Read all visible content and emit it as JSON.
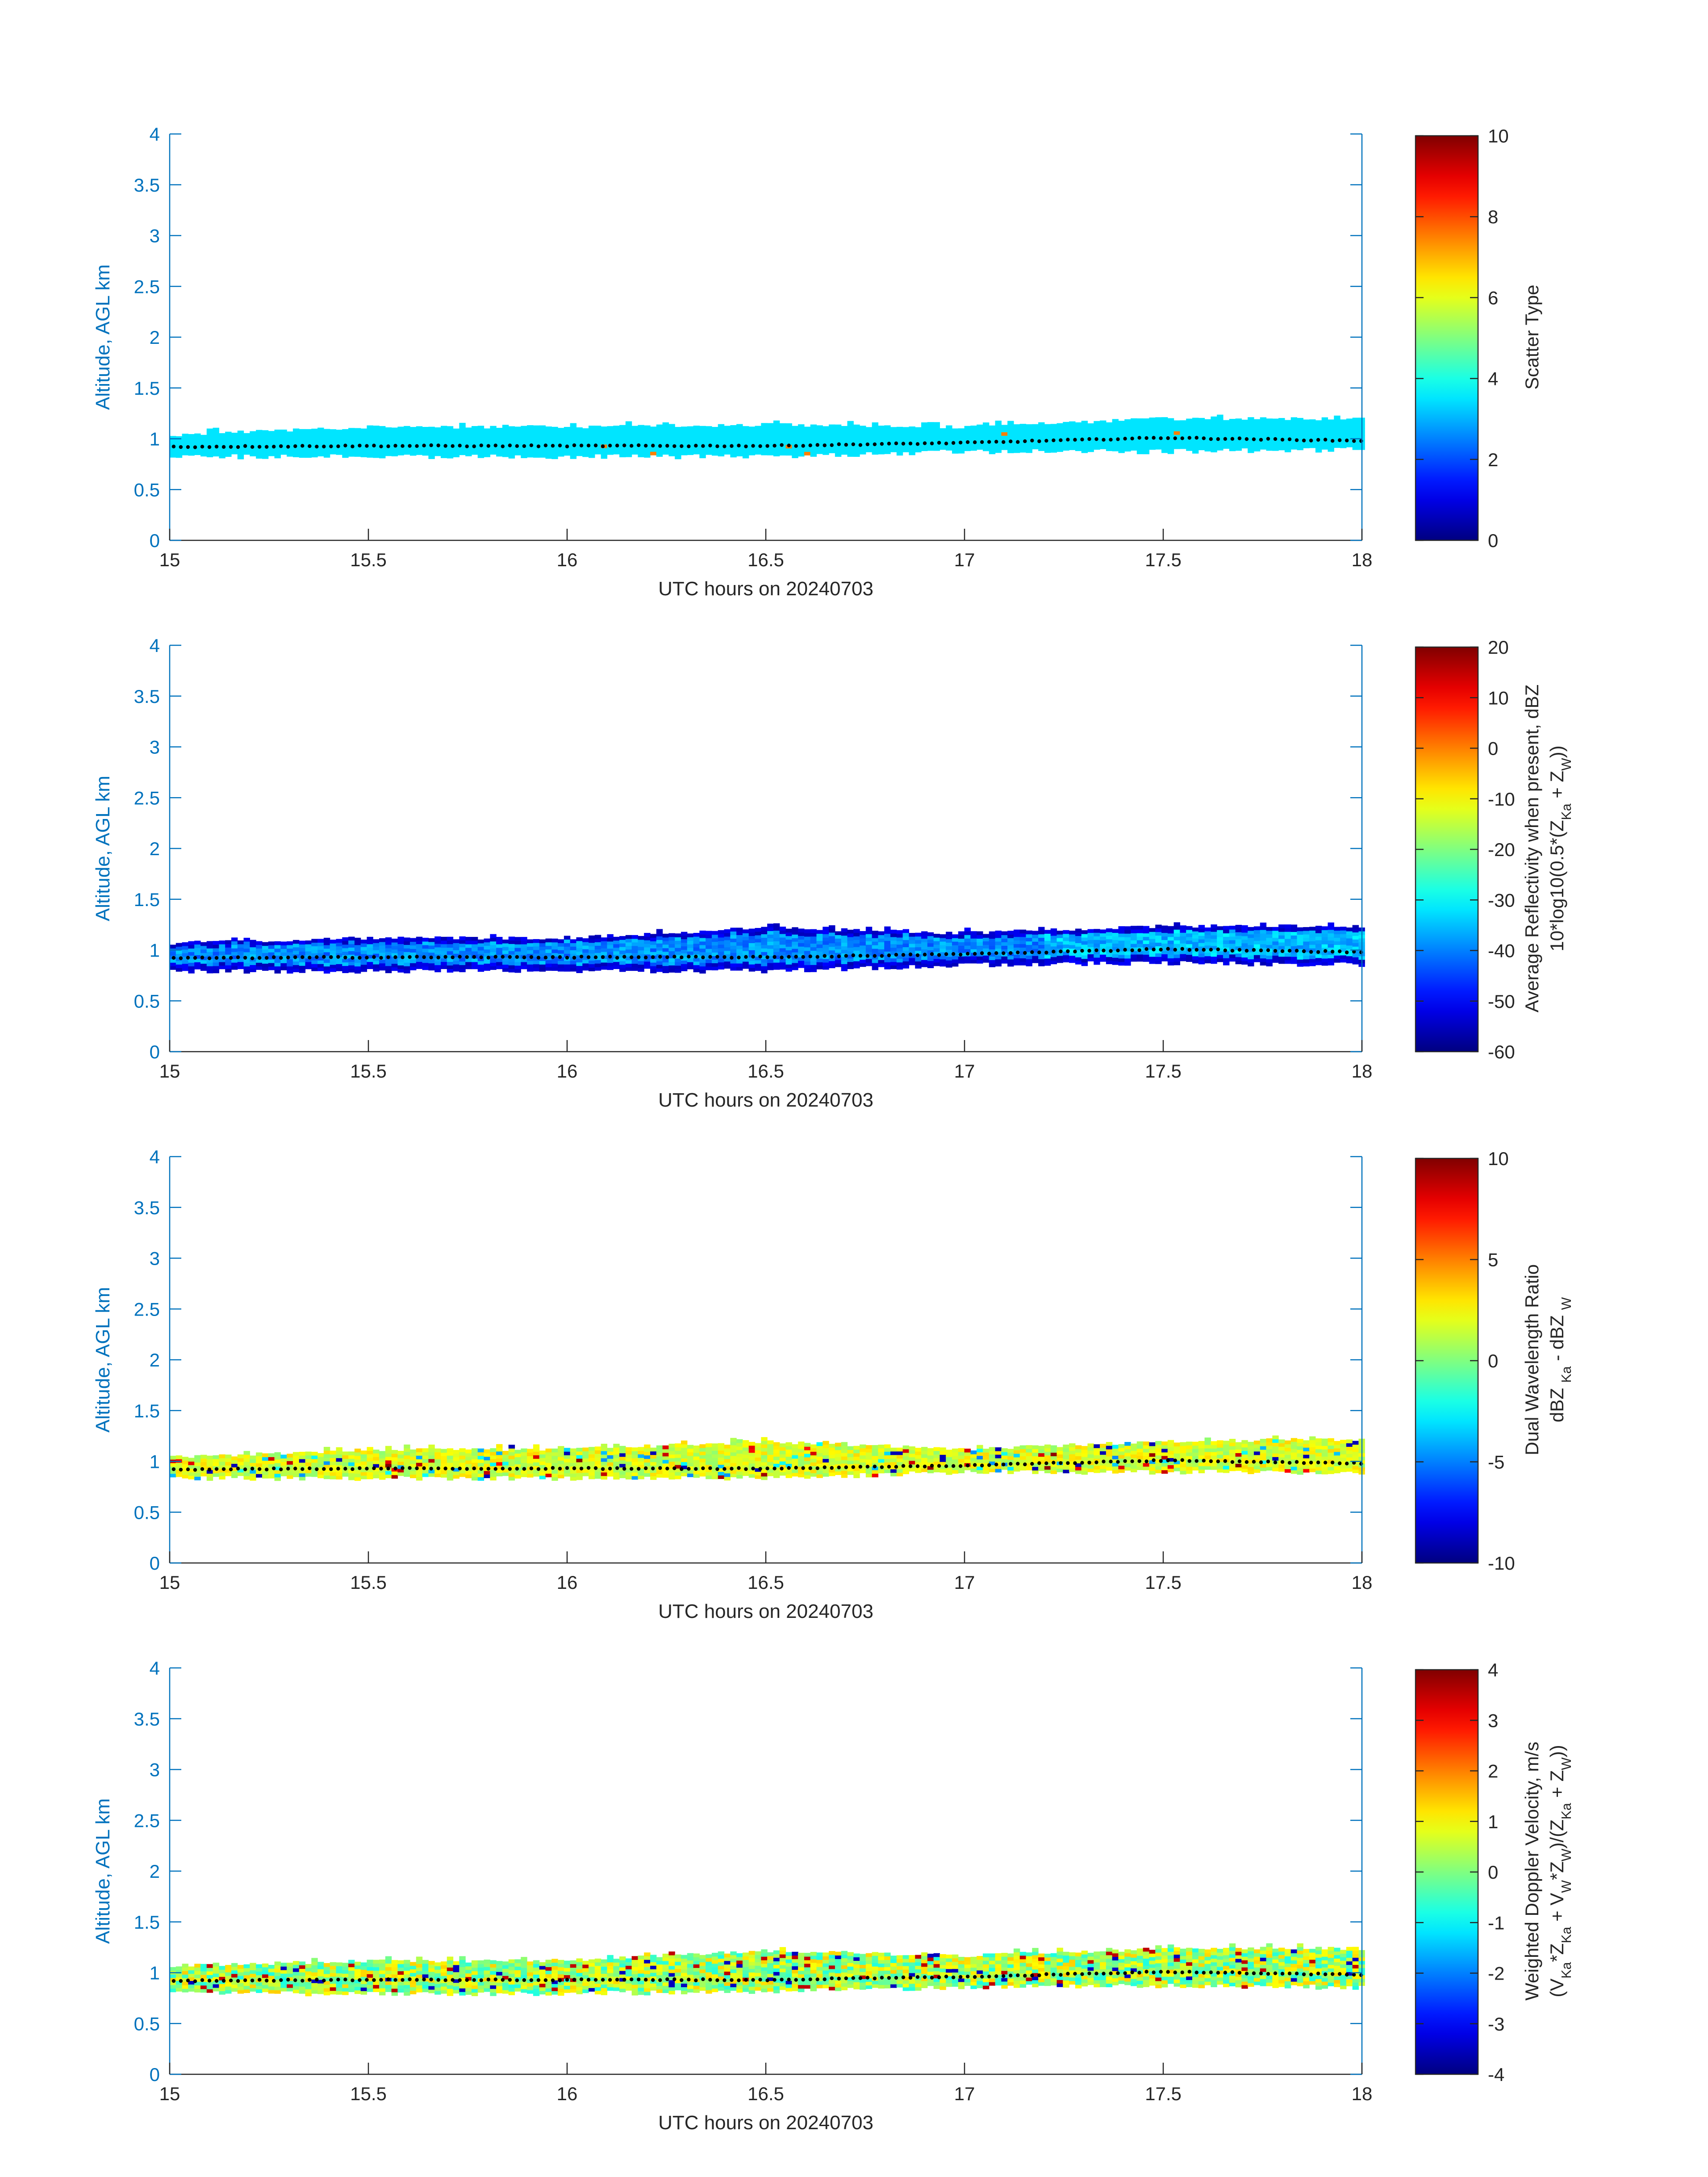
{
  "figure": {
    "title": "",
    "date_label": "UTC hours on 20240703"
  },
  "colors": {
    "axis_blue": "#0072BD",
    "text_dark": "#262626",
    "colorbar_scale": "jet"
  },
  "chart_data": [
    {
      "type": "heatmap",
      "title": "",
      "xlabel": "UTC hours on 20240703",
      "ylabel": "Altitude, AGL km",
      "xlim": [
        15,
        18
      ],
      "ylim": [
        0,
        4
      ],
      "xticks": [
        "15",
        "15.5",
        "16",
        "16.5",
        "17",
        "17.5",
        "18"
      ],
      "yticks": [
        "0",
        "0.5",
        "1",
        "1.5",
        "2",
        "2.5",
        "3",
        "3.5",
        "4"
      ],
      "colorbar": {
        "label_lines": [
          "Scatter Type"
        ],
        "clim": [
          0,
          10
        ],
        "ticks": [
          "0",
          "2",
          "4",
          "6",
          "8",
          "10"
        ]
      },
      "layer": {
        "x": [
          15.0,
          15.5,
          16.0,
          16.5,
          17.0,
          17.5,
          18.0
        ],
        "bottom_km": [
          0.85,
          0.85,
          0.85,
          0.85,
          0.9,
          0.9,
          0.92
        ],
        "top_km": [
          1.02,
          1.1,
          1.1,
          1.12,
          1.1,
          1.18,
          1.18
        ],
        "typical_value": 3.5
      },
      "line": {
        "x": [
          15.0,
          15.5,
          16.0,
          16.5,
          17.0,
          17.5,
          18.0
        ],
        "y": [
          0.92,
          0.93,
          0.93,
          0.93,
          0.96,
          1.01,
          0.98
        ]
      }
    },
    {
      "type": "heatmap",
      "title": "",
      "xlabel": "UTC hours on 20240703",
      "ylabel": "Altitude, AGL km",
      "xlim": [
        15,
        18
      ],
      "ylim": [
        0,
        4
      ],
      "xticks": [
        "15",
        "15.5",
        "16",
        "16.5",
        "17",
        "17.5",
        "18"
      ],
      "yticks": [
        "0",
        "0.5",
        "1",
        "1.5",
        "2",
        "2.5",
        "3",
        "3.5",
        "4"
      ],
      "colorbar": {
        "label_lines": [
          "Average Reflectivity when present, dBZ",
          "10*log10(0.5*(Z<sub>Ka</sub> + Z<sub>W</sub>))"
        ],
        "clim": [
          -60,
          20
        ],
        "ticks": [
          "-60",
          "-50",
          "-40",
          "-30",
          "-20",
          "-10",
          "0",
          "10",
          "20"
        ]
      },
      "layer": {
        "x": [
          15.0,
          15.5,
          16.0,
          16.5,
          17.0,
          17.5,
          18.0
        ],
        "bottom_km": [
          0.82,
          0.82,
          0.82,
          0.82,
          0.88,
          0.9,
          0.88
        ],
        "top_km": [
          1.05,
          1.1,
          1.1,
          1.2,
          1.15,
          1.22,
          1.22
        ],
        "typical_value": -42
      },
      "line": {
        "x": [
          15.0,
          15.5,
          16.0,
          16.5,
          17.0,
          17.5,
          18.0
        ],
        "y": [
          0.92,
          0.93,
          0.93,
          0.93,
          0.96,
          1.01,
          0.98
        ]
      }
    },
    {
      "type": "heatmap",
      "title": "",
      "xlabel": "UTC hours on 20240703",
      "ylabel": "Altitude, AGL km",
      "xlim": [
        15,
        18
      ],
      "ylim": [
        0,
        4
      ],
      "xticks": [
        "15",
        "15.5",
        "16",
        "16.5",
        "17",
        "17.5",
        "18"
      ],
      "yticks": [
        "0",
        "0.5",
        "1",
        "1.5",
        "2",
        "2.5",
        "3",
        "3.5",
        "4"
      ],
      "colorbar": {
        "label_lines": [
          "Dual Wavelength Ratio",
          "dBZ <sub>Ka</sub> - dBZ <sub>W</sub>"
        ],
        "clim": [
          -10,
          10
        ],
        "ticks": [
          "-10",
          "-5",
          "0",
          "5",
          "10"
        ]
      },
      "layer": {
        "x": [
          15.0,
          15.5,
          16.0,
          16.5,
          17.0,
          17.5,
          18.0
        ],
        "bottom_km": [
          0.86,
          0.86,
          0.86,
          0.86,
          0.92,
          0.92,
          0.92
        ],
        "top_km": [
          1.02,
          1.1,
          1.1,
          1.18,
          1.1,
          1.18,
          1.2
        ],
        "typical_value": 1.5
      },
      "line": {
        "x": [
          15.0,
          15.5,
          16.0,
          16.5,
          17.0,
          17.5,
          18.0
        ],
        "y": [
          0.92,
          0.93,
          0.93,
          0.93,
          0.96,
          1.01,
          0.98
        ]
      }
    },
    {
      "type": "heatmap",
      "title": "",
      "xlabel": "UTC hours on 20240703",
      "ylabel": "Altitude, AGL km",
      "xlim": [
        15,
        18
      ],
      "ylim": [
        0,
        4
      ],
      "xticks": [
        "15",
        "15.5",
        "16",
        "16.5",
        "17",
        "17.5",
        "18"
      ],
      "yticks": [
        "0",
        "0.5",
        "1",
        "1.5",
        "2",
        "2.5",
        "3",
        "3.5",
        "4"
      ],
      "colorbar": {
        "label_lines": [
          "Weighted Doppler Velocity, m/s",
          "(V<sub>Ka</sub>*Z<sub>Ka</sub> + V<sub>W</sub>*Z<sub>W</sub>)/(Z<sub>Ka</sub> + Z<sub>W</sub>))"
        ],
        "clim": [
          -4,
          4
        ],
        "ticks": [
          "-4",
          "-3",
          "-2",
          "-1",
          "0",
          "1",
          "2",
          "3",
          "4"
        ]
      },
      "layer": {
        "x": [
          15.0,
          15.5,
          16.0,
          16.5,
          17.0,
          17.5,
          18.0
        ],
        "bottom_km": [
          0.82,
          0.82,
          0.82,
          0.84,
          0.88,
          0.9,
          0.88
        ],
        "top_km": [
          1.05,
          1.1,
          1.1,
          1.2,
          1.15,
          1.22,
          1.22
        ],
        "typical_value": 0.3
      },
      "line": {
        "x": [
          15.0,
          15.5,
          16.0,
          16.5,
          17.0,
          17.5,
          18.0
        ],
        "y": [
          0.92,
          0.93,
          0.93,
          0.93,
          0.96,
          1.01,
          0.98
        ]
      }
    }
  ]
}
